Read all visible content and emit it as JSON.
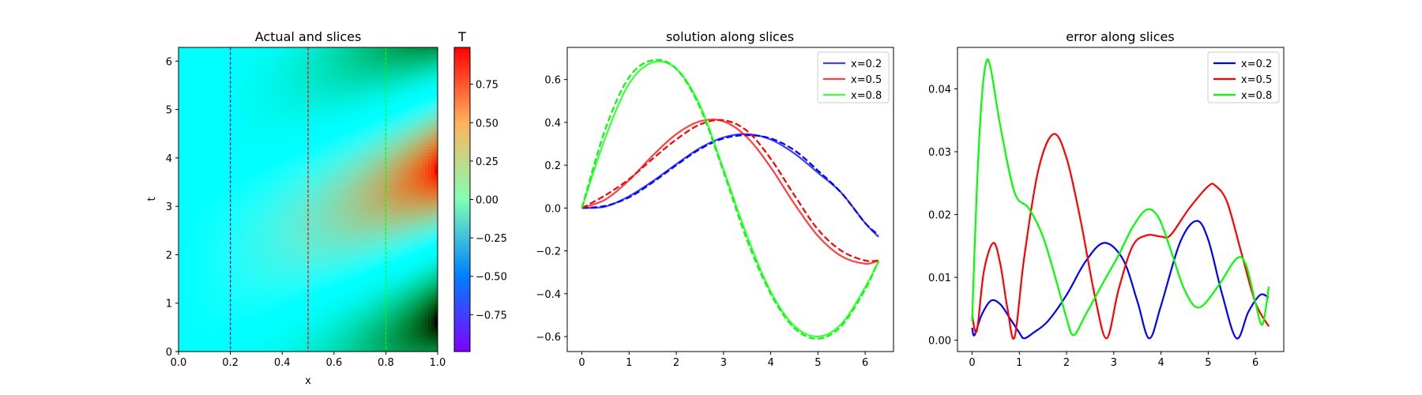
{
  "chart_data": [
    {
      "type": "heatmap",
      "title": "Actual and slices",
      "xlabel": "x",
      "ylabel": "t",
      "xlim": [
        0,
        1
      ],
      "ylim": [
        0,
        6.283
      ],
      "xticks": [
        "0.0",
        "0.2",
        "0.4",
        "0.6",
        "0.8",
        "1.0"
      ],
      "yticks": [
        "0",
        "1",
        "2",
        "3",
        "4",
        "5",
        "6"
      ],
      "colormap": "rainbow",
      "colorbar": {
        "label": "T",
        "range": [
          -0.99,
          0.99
        ],
        "ticks": [
          "−0.75",
          "−0.50",
          "−0.25",
          "0.00",
          "0.25",
          "0.50",
          "0.75"
        ]
      },
      "slices": [
        {
          "x": 0.2,
          "color": "#0000ff"
        },
        {
          "x": 0.5,
          "color": "#ff0000"
        },
        {
          "x": 0.8,
          "color": "#00ff00"
        }
      ]
    },
    {
      "type": "line",
      "title": "solution along slices",
      "xlim": [
        -0.31,
        6.6
      ],
      "ylim": [
        -0.67,
        0.75
      ],
      "xticks": [
        "0",
        "1",
        "2",
        "3",
        "4",
        "5",
        "6"
      ],
      "yticks": [
        "−0.6",
        "−0.4",
        "−0.2",
        "0.0",
        "0.2",
        "0.4",
        "0.6"
      ],
      "legend_position": "upper right",
      "legend": [
        "x=0.2",
        "x=0.5",
        "x=0.8"
      ],
      "x": [
        0,
        0.5,
        1,
        1.5,
        2,
        2.5,
        3,
        3.5,
        4,
        4.5,
        5,
        5.5,
        6,
        6.283
      ],
      "series": [
        {
          "name": "x=0.2",
          "style": "solid",
          "color": "#0000ff",
          "values": [
            0,
            0.007,
            0.055,
            0.125,
            0.205,
            0.28,
            0.33,
            0.345,
            0.32,
            0.255,
            0.165,
            0.07,
            -0.07,
            -0.135
          ]
        },
        {
          "name": "x=0.2",
          "style": "dashed",
          "color": "#0000ff",
          "values": [
            0,
            0.01,
            0.05,
            0.12,
            0.2,
            0.275,
            0.325,
            0.34,
            0.325,
            0.27,
            0.175,
            0.07,
            -0.07,
            -0.125
          ]
        },
        {
          "name": "x=0.5",
          "style": "solid",
          "color": "#ff0000",
          "values": [
            0,
            0.04,
            0.13,
            0.245,
            0.345,
            0.405,
            0.405,
            0.33,
            0.19,
            0.02,
            -0.13,
            -0.225,
            -0.26,
            -0.245
          ]
        },
        {
          "name": "x=0.5",
          "style": "dashed",
          "color": "#ff0000",
          "values": [
            0,
            0.06,
            0.135,
            0.23,
            0.32,
            0.39,
            0.41,
            0.36,
            0.23,
            0.06,
            -0.1,
            -0.2,
            -0.245,
            -0.245
          ]
        },
        {
          "name": "x=0.8",
          "style": "solid",
          "color": "#00ff00",
          "values": [
            0,
            0.33,
            0.58,
            0.68,
            0.65,
            0.48,
            0.18,
            -0.13,
            -0.39,
            -0.55,
            -0.6,
            -0.54,
            -0.37,
            -0.25
          ]
        },
        {
          "name": "x=0.8",
          "style": "dashed",
          "color": "#00ff00",
          "values": [
            0,
            0.37,
            0.61,
            0.69,
            0.65,
            0.47,
            0.17,
            -0.15,
            -0.4,
            -0.56,
            -0.61,
            -0.55,
            -0.38,
            -0.245
          ]
        }
      ]
    },
    {
      "type": "line",
      "title": "error along slices",
      "xlim": [
        -0.31,
        6.6
      ],
      "ylim": [
        -0.0018,
        0.0466
      ],
      "xticks": [
        "0",
        "1",
        "2",
        "3",
        "4",
        "5",
        "6"
      ],
      "yticks": [
        "0.00",
        "0.01",
        "0.02",
        "0.03",
        "0.04"
      ],
      "legend_position": "upper right",
      "legend": [
        "x=0.2",
        "x=0.5",
        "x=0.8"
      ],
      "series": [
        {
          "name": "x=0.2",
          "color": "#0000ff",
          "x": [
            0,
            0.05,
            0.2,
            0.4,
            0.6,
            0.8,
            1.0,
            1.1,
            1.3,
            1.6,
            2.0,
            2.4,
            2.8,
            3.2,
            3.5,
            3.75,
            4.0,
            4.4,
            4.75,
            5.0,
            5.3,
            5.6,
            5.85,
            6.1,
            6.283
          ],
          "values": [
            0.002,
            0.0008,
            0.004,
            0.0063,
            0.0057,
            0.0035,
            0.0012,
            0.0003,
            0.0012,
            0.003,
            0.0072,
            0.0125,
            0.0155,
            0.0128,
            0.0062,
            0.0003,
            0.0055,
            0.0155,
            0.019,
            0.016,
            0.0072,
            0.0003,
            0.0045,
            0.0072,
            0.0068
          ]
        },
        {
          "name": "x=0.5",
          "color": "#ff0000",
          "x": [
            0,
            0.1,
            0.25,
            0.45,
            0.6,
            0.75,
            0.9,
            1.1,
            1.4,
            1.72,
            2.0,
            2.3,
            2.6,
            2.85,
            3.1,
            3.4,
            3.7,
            4.0,
            4.2,
            4.6,
            5.0,
            5.15,
            5.4,
            5.7,
            6.0,
            6.283
          ],
          "values": [
            0.004,
            0.0015,
            0.011,
            0.0155,
            0.012,
            0.005,
            0.0005,
            0.013,
            0.027,
            0.0328,
            0.029,
            0.019,
            0.007,
            0.0003,
            0.008,
            0.015,
            0.0167,
            0.0165,
            0.0167,
            0.021,
            0.0245,
            0.0246,
            0.022,
            0.014,
            0.006,
            0.0022
          ]
        },
        {
          "name": "x=0.8",
          "color": "#00ff00",
          "x": [
            0,
            0.1,
            0.2,
            0.3,
            0.4,
            0.6,
            0.9,
            1.2,
            1.5,
            1.8,
            2.0,
            2.15,
            2.4,
            2.8,
            3.1,
            3.4,
            3.7,
            3.95,
            4.2,
            4.5,
            4.8,
            5.2,
            5.6,
            5.8,
            6.0,
            6.15,
            6.283
          ],
          "values": [
            0.003,
            0.024,
            0.038,
            0.0443,
            0.043,
            0.034,
            0.0235,
            0.021,
            0.0165,
            0.009,
            0.0035,
            0.0008,
            0.004,
            0.0095,
            0.0135,
            0.018,
            0.0208,
            0.0195,
            0.0145,
            0.008,
            0.0052,
            0.0085,
            0.013,
            0.012,
            0.006,
            0.0025,
            0.0085
          ]
        }
      ]
    }
  ]
}
